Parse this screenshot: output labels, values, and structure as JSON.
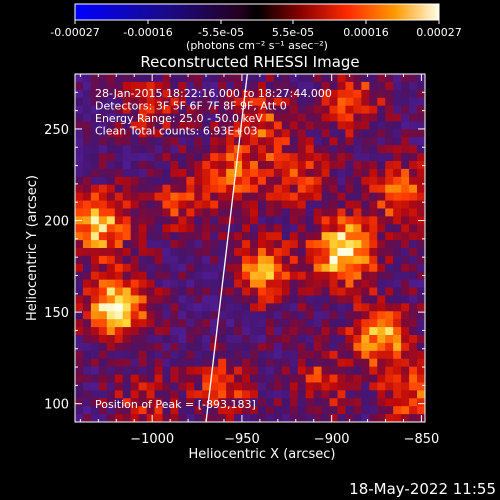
{
  "colorbar": {
    "tick_labels": [
      "-0.00027",
      "-0.00016",
      "-5.5e-05",
      "5.5e-05",
      "0.00016",
      "0.00027"
    ],
    "unit_label": "(photons cm⁻² s⁻¹ asec⁻²)",
    "range": [
      -0.00027,
      0.00027
    ]
  },
  "chart_data": {
    "type": "heatmap",
    "title": "Reconstructed RHESSI Image",
    "xlabel": "Heliocentric X (arcsec)",
    "ylabel": "Heliocentric Y (arcsec)",
    "xlim": [
      -1043,
      -848
    ],
    "ylim": [
      90,
      280
    ],
    "xticks": [
      -1000,
      -950,
      -900,
      -850
    ],
    "yticks": [
      100,
      150,
      200,
      250
    ],
    "xtick_labels": [
      "−1000",
      "−950",
      "−900",
      "−850"
    ],
    "ytick_labels": [
      "100",
      "150",
      "200",
      "250"
    ],
    "annotations": [
      "28-Jan-2015 18:22:16.000 to 18:27:44.000",
      "Detectors: 3F 5F 6F 7F 8F 9F, Att 0",
      "Energy Range: 25.0 - 50.0 keV",
      "Clean     Total counts: 6.93E+03"
    ],
    "peak_label": "Position of Peak = [-893,183]",
    "peak": [
      -893,
      183
    ],
    "limb_line": [
      [
        -970,
        90
      ],
      [
        -947,
        280
      ]
    ],
    "sources": [
      {
        "x": -1020,
        "y": 152,
        "intensity": 1.0
      },
      {
        "x": -1030,
        "y": 198,
        "intensity": 0.85
      },
      {
        "x": -893,
        "y": 183,
        "intensity": 1.0
      },
      {
        "x": -872,
        "y": 138,
        "intensity": 0.75
      },
      {
        "x": -938,
        "y": 172,
        "intensity": 0.7
      },
      {
        "x": -955,
        "y": 225,
        "intensity": 0.55
      },
      {
        "x": -940,
        "y": 255,
        "intensity": 0.5
      },
      {
        "x": -888,
        "y": 265,
        "intensity": 0.55
      },
      {
        "x": -862,
        "y": 215,
        "intensity": 0.6
      },
      {
        "x": -985,
        "y": 210,
        "intensity": 0.45
      },
      {
        "x": -960,
        "y": 110,
        "intensity": 0.5
      },
      {
        "x": -905,
        "y": 112,
        "intensity": 0.45
      },
      {
        "x": -855,
        "y": 105,
        "intensity": 0.55
      },
      {
        "x": -1005,
        "y": 100,
        "intensity": 0.4
      },
      {
        "x": -1000,
        "y": 262,
        "intensity": 0.4
      },
      {
        "x": -920,
        "y": 225,
        "intensity": 0.45
      }
    ]
  },
  "timestamp": "18-May-2022 11:55"
}
